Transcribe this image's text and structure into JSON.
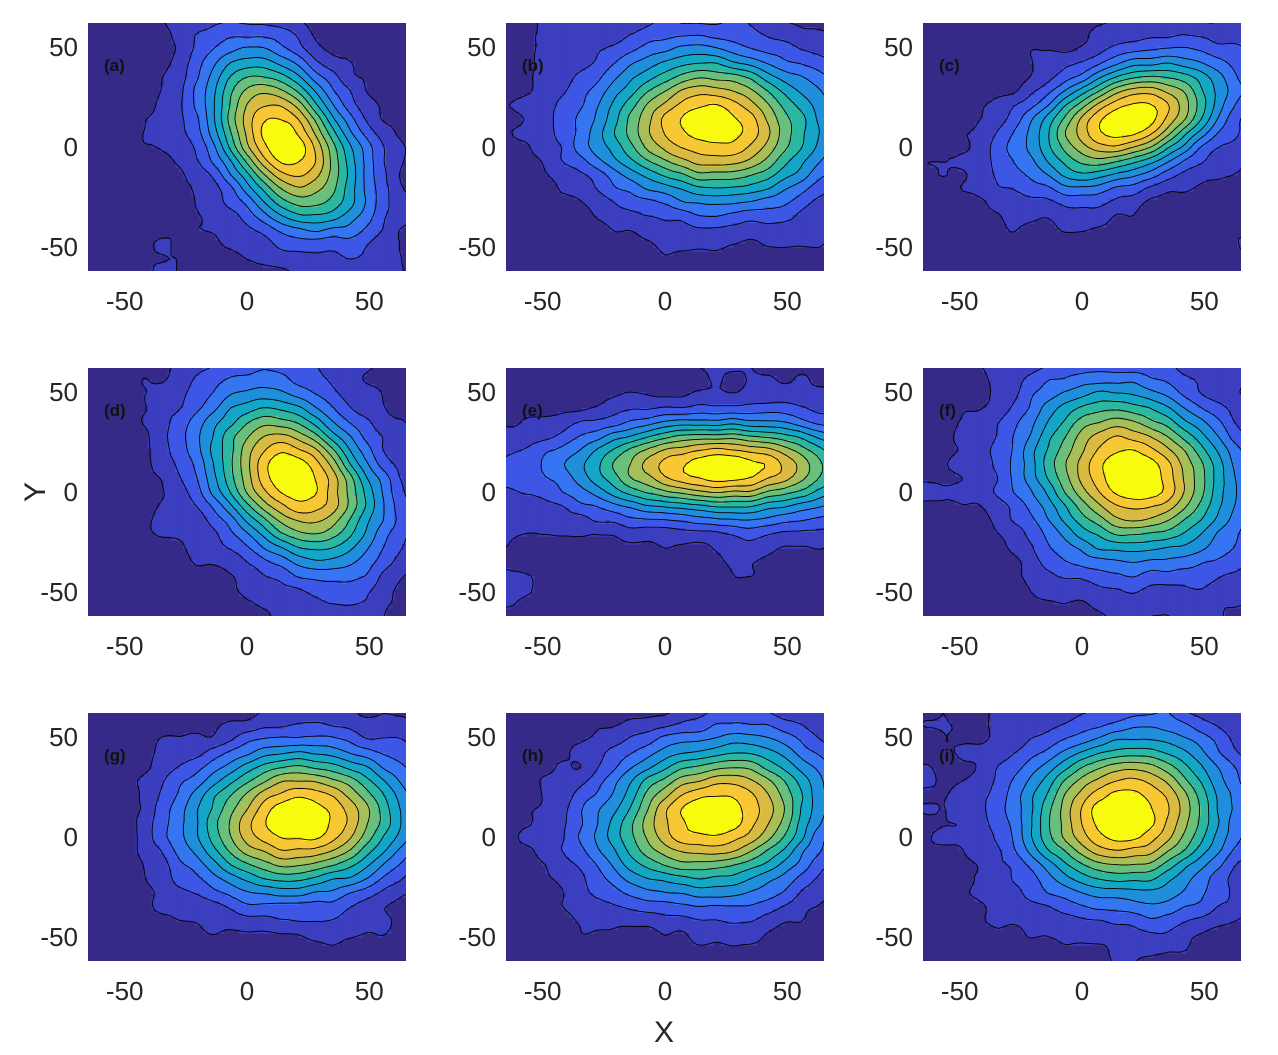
{
  "chart_data": {
    "type": "contour",
    "layout": "3x3 grid of filled contour panels",
    "xlabel": "X",
    "ylabel": "Y",
    "xlim": [
      -65,
      65
    ],
    "ylim": [
      -62,
      62
    ],
    "xticks": [
      -50,
      0,
      50
    ],
    "yticks": [
      -50,
      0,
      50
    ],
    "colormap": [
      "#352a87",
      "#3b3ebf",
      "#3d56e6",
      "#3575f2",
      "#1f8fdb",
      "#14a6c6",
      "#2bb7a0",
      "#68c07c",
      "#a7bf59",
      "#d9ba42",
      "#f7c834",
      "#f9fb0e"
    ],
    "contour_line_color": "#000000",
    "panels": [
      {
        "label": "(a)",
        "peak": [
          16,
          2
        ],
        "sigma_x": 22,
        "sigma_y": 30,
        "rho": -0.45,
        "levels": 12
      },
      {
        "label": "(b)",
        "peak": [
          20,
          10
        ],
        "sigma_x": 32,
        "sigma_y": 26,
        "rho": -0.05,
        "levels": 12
      },
      {
        "label": "(c)",
        "peak": [
          18,
          13
        ],
        "sigma_x": 26,
        "sigma_y": 20,
        "rho": 0.4,
        "levels": 12
      },
      {
        "label": "(d)",
        "peak": [
          18,
          8
        ],
        "sigma_x": 24,
        "sigma_y": 30,
        "rho": -0.35,
        "levels": 12
      },
      {
        "label": "(e)",
        "peak": [
          22,
          12
        ],
        "sigma_x": 38,
        "sigma_y": 16,
        "rho": 0.0,
        "levels": 12
      },
      {
        "label": "(f)",
        "peak": [
          20,
          10
        ],
        "sigma_x": 28,
        "sigma_y": 30,
        "rho": -0.15,
        "levels": 12
      },
      {
        "label": "(g)",
        "peak": [
          20,
          9
        ],
        "sigma_x": 32,
        "sigma_y": 26,
        "rho": 0.1,
        "levels": 12
      },
      {
        "label": "(h)",
        "peak": [
          18,
          10
        ],
        "sigma_x": 30,
        "sigma_y": 26,
        "rho": 0.15,
        "levels": 12
      },
      {
        "label": "(i)",
        "peak": [
          18,
          10
        ],
        "sigma_x": 28,
        "sigma_y": 28,
        "rho": 0.05,
        "levels": 12
      }
    ]
  }
}
